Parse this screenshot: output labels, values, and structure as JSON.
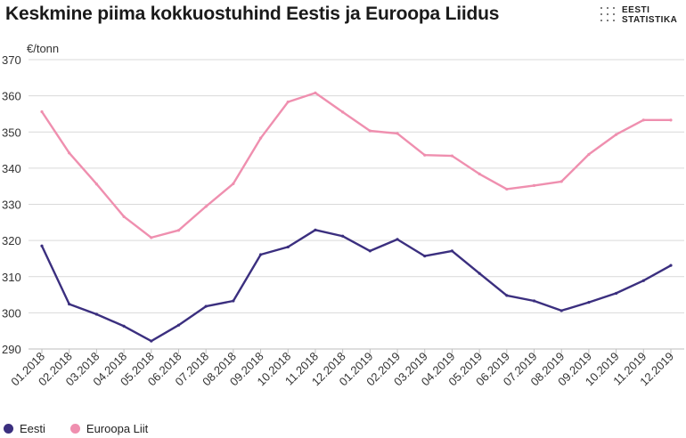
{
  "title": "Keskmine piima kokkuostuhind Eestis ja Euroopa Liidus",
  "logo": {
    "line1": "EESTI",
    "line2": "STATISTIKA"
  },
  "colors": {
    "eesti": "#3b2f7f",
    "eu": "#ef8faf",
    "grid": "#d9d9d9",
    "axis": "#bdbdbd"
  },
  "chart_data": {
    "type": "line",
    "title": "Keskmine piima kokkuostuhind Eestis ja Euroopa Liidus",
    "ylabel": "€/tonn",
    "xlabel": "",
    "ylim": [
      290,
      370
    ],
    "yticks": [
      290,
      300,
      310,
      320,
      330,
      340,
      350,
      360,
      370
    ],
    "grid": true,
    "legend_position": "bottom-left",
    "categories": [
      "01.2018",
      "02.2018",
      "03.2018",
      "04.2018",
      "05.2018",
      "06.2018",
      "07.2018",
      "08.2018",
      "09.2018",
      "10.2018",
      "11.2018",
      "12.2018",
      "01.2019",
      "02.2019",
      "03.2019",
      "04.2019",
      "05.2019",
      "06.2019",
      "07.2019",
      "08.2019",
      "09.2019",
      "10.2019",
      "11.2019",
      "12.2019"
    ],
    "series": [
      {
        "name": "Eesti",
        "color": "#3b2f7f",
        "values": [
          318.5,
          302.4,
          299.6,
          296.3,
          292.2,
          296.6,
          301.8,
          303.3,
          316.1,
          318.2,
          322.9,
          321.2,
          317.1,
          320.3,
          315.7,
          317.1,
          310.9,
          304.8,
          303.3,
          300.6,
          302.9,
          305.4,
          308.9,
          313.1
        ]
      },
      {
        "name": "Euroopa Liit",
        "color": "#ef8faf",
        "values": [
          355.6,
          344.2,
          335.6,
          326.6,
          320.8,
          322.8,
          329.4,
          335.7,
          348.3,
          358.3,
          360.8,
          355.5,
          350.3,
          349.6,
          343.6,
          343.4,
          338.4,
          334.2,
          335.2,
          336.3,
          343.8,
          349.3,
          353.3,
          353.3
        ]
      }
    ]
  }
}
